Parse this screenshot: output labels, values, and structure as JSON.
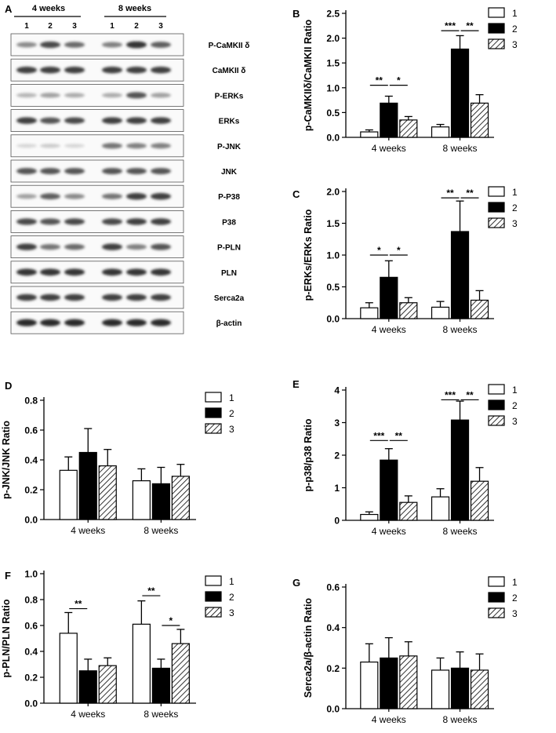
{
  "blot": {
    "panel_letter": "A",
    "group_labels": [
      "4 weeks",
      "8 weeks"
    ],
    "lane_labels": [
      "1",
      "2",
      "3",
      "1",
      "2",
      "3"
    ],
    "rows": [
      {
        "label": "P-CaMKII δ",
        "intensity": [
          0.45,
          0.75,
          0.6,
          0.5,
          0.85,
          0.65
        ]
      },
      {
        "label": "CaMKII δ",
        "intensity": [
          0.8,
          0.8,
          0.8,
          0.8,
          0.8,
          0.8
        ]
      },
      {
        "label": "P-ERKs",
        "intensity": [
          0.25,
          0.35,
          0.3,
          0.3,
          0.7,
          0.35
        ]
      },
      {
        "label": "ERKs",
        "intensity": [
          0.8,
          0.7,
          0.75,
          0.8,
          0.8,
          0.8
        ]
      },
      {
        "label": "P-JNK",
        "intensity": [
          0.1,
          0.15,
          0.1,
          0.55,
          0.5,
          0.5
        ]
      },
      {
        "label": "JNK",
        "intensity": [
          0.7,
          0.7,
          0.7,
          0.7,
          0.7,
          0.7
        ]
      },
      {
        "label": "P-P38",
        "intensity": [
          0.35,
          0.65,
          0.45,
          0.55,
          0.8,
          0.8
        ]
      },
      {
        "label": "P38",
        "intensity": [
          0.75,
          0.7,
          0.75,
          0.75,
          0.8,
          0.8
        ]
      },
      {
        "label": "P-PLN",
        "intensity": [
          0.8,
          0.55,
          0.6,
          0.8,
          0.5,
          0.7
        ]
      },
      {
        "label": "PLN",
        "intensity": [
          0.85,
          0.85,
          0.85,
          0.85,
          0.85,
          0.85
        ]
      },
      {
        "label": "Serca2a",
        "intensity": [
          0.8,
          0.8,
          0.8,
          0.8,
          0.8,
          0.8
        ]
      },
      {
        "label": "β-actin",
        "intensity": [
          0.9,
          0.9,
          0.9,
          0.9,
          0.9,
          0.9
        ]
      }
    ]
  },
  "chart_data": [
    {
      "type": "bar",
      "panel": "B",
      "ylabel": "p-CaMKIIδ/CaMKII Ratio",
      "categories": [
        "4 weeks",
        "8 weeks"
      ],
      "ylim": [
        0,
        2.5
      ],
      "yticks": [
        "0.0",
        "0.5",
        "1.0",
        "1.5",
        "2.0",
        "2.5"
      ],
      "legend_position": "top-right",
      "series": [
        {
          "name": "1",
          "values": [
            0.11,
            0.21
          ],
          "errors": [
            0.04,
            0.05
          ]
        },
        {
          "name": "2",
          "values": [
            0.69,
            1.78
          ],
          "errors": [
            0.14,
            0.27
          ]
        },
        {
          "name": "3",
          "values": [
            0.35,
            0.69
          ],
          "errors": [
            0.07,
            0.17
          ]
        }
      ],
      "significance": [
        {
          "group": 0,
          "from": 0,
          "to": 1,
          "label": "**",
          "y": 1.05
        },
        {
          "group": 0,
          "from": 1,
          "to": 2,
          "label": "*",
          "y": 1.05
        },
        {
          "group": 1,
          "from": 0,
          "to": 1,
          "label": "***",
          "y": 2.15
        },
        {
          "group": 1,
          "from": 1,
          "to": 2,
          "label": "**",
          "y": 2.15
        }
      ]
    },
    {
      "type": "bar",
      "panel": "C",
      "ylabel": "p-ERKs/ERKs Ratio",
      "categories": [
        "4 weeks",
        "8 weeks"
      ],
      "ylim": [
        0,
        2.0
      ],
      "yticks": [
        "0.0",
        "0.5",
        "1.0",
        "1.5",
        "2.0"
      ],
      "legend_position": "top-right",
      "series": [
        {
          "name": "1",
          "values": [
            0.17,
            0.18
          ],
          "errors": [
            0.08,
            0.09
          ]
        },
        {
          "name": "2",
          "values": [
            0.65,
            1.37
          ],
          "errors": [
            0.26,
            0.48
          ]
        },
        {
          "name": "3",
          "values": [
            0.25,
            0.29
          ],
          "errors": [
            0.08,
            0.15
          ]
        }
      ],
      "significance": [
        {
          "group": 0,
          "from": 0,
          "to": 1,
          "label": "*",
          "y": 1.0
        },
        {
          "group": 0,
          "from": 1,
          "to": 2,
          "label": "*",
          "y": 1.0
        },
        {
          "group": 1,
          "from": 0,
          "to": 1,
          "label": "**",
          "y": 1.9
        },
        {
          "group": 1,
          "from": 1,
          "to": 2,
          "label": "**",
          "y": 1.9
        }
      ]
    },
    {
      "type": "bar",
      "panel": "D",
      "ylabel": "p-JNK/JNK Ratio",
      "categories": [
        "4 weeks",
        "8 weeks"
      ],
      "ylim": [
        0,
        0.8
      ],
      "yticks": [
        "0.0",
        "0.2",
        "0.4",
        "0.6",
        "0.8"
      ],
      "legend_position": "top-right",
      "series": [
        {
          "name": "1",
          "values": [
            0.33,
            0.26
          ],
          "errors": [
            0.09,
            0.08
          ]
        },
        {
          "name": "2",
          "values": [
            0.45,
            0.24
          ],
          "errors": [
            0.16,
            0.11
          ]
        },
        {
          "name": "3",
          "values": [
            0.36,
            0.29
          ],
          "errors": [
            0.11,
            0.08
          ]
        }
      ],
      "significance": []
    },
    {
      "type": "bar",
      "panel": "E",
      "ylabel": "p-p38/p38 Ratio",
      "categories": [
        "4 weeks",
        "8 weeks"
      ],
      "ylim": [
        0,
        4
      ],
      "yticks": [
        "0",
        "1",
        "2",
        "3",
        "4"
      ],
      "legend_position": "top-right",
      "series": [
        {
          "name": "1",
          "values": [
            0.18,
            0.72
          ],
          "errors": [
            0.08,
            0.25
          ]
        },
        {
          "name": "2",
          "values": [
            1.85,
            3.08
          ],
          "errors": [
            0.35,
            0.58
          ]
        },
        {
          "name": "3",
          "values": [
            0.55,
            1.2
          ],
          "errors": [
            0.2,
            0.42
          ]
        }
      ],
      "significance": [
        {
          "group": 0,
          "from": 0,
          "to": 1,
          "label": "***",
          "y": 2.45
        },
        {
          "group": 0,
          "from": 1,
          "to": 2,
          "label": "**",
          "y": 2.45
        },
        {
          "group": 1,
          "from": 0,
          "to": 1,
          "label": "***",
          "y": 3.7
        },
        {
          "group": 1,
          "from": 1,
          "to": 2,
          "label": "**",
          "y": 3.7
        }
      ]
    },
    {
      "type": "bar",
      "panel": "F",
      "ylabel": "p-PLN/PLN Ratio",
      "categories": [
        "4 weeks",
        "8 weeks"
      ],
      "ylim": [
        0,
        1.0
      ],
      "yticks": [
        "0.0",
        "0.2",
        "0.4",
        "0.6",
        "0.8",
        "1.0"
      ],
      "legend_position": "top-right",
      "series": [
        {
          "name": "1",
          "values": [
            0.54,
            0.61
          ],
          "errors": [
            0.16,
            0.18
          ]
        },
        {
          "name": "2",
          "values": [
            0.25,
            0.27
          ],
          "errors": [
            0.09,
            0.07
          ]
        },
        {
          "name": "3",
          "values": [
            0.29,
            0.46
          ],
          "errors": [
            0.06,
            0.11
          ]
        }
      ],
      "significance": [
        {
          "group": 0,
          "from": 0,
          "to": 1,
          "label": "**",
          "y": 0.73
        },
        {
          "group": 1,
          "from": 0,
          "to": 1,
          "label": "**",
          "y": 0.83
        },
        {
          "group": 1,
          "from": 1,
          "to": 2,
          "label": "*",
          "y": 0.6
        }
      ]
    },
    {
      "type": "bar",
      "panel": "G",
      "ylabel": "Serca2a/β-actin Ratio",
      "categories": [
        "4 weeks",
        "8 weeks"
      ],
      "ylim": [
        0,
        0.6
      ],
      "yticks": [
        "0.0",
        "0.2",
        "0.4",
        "0.6"
      ],
      "legend_position": "top-right",
      "series": [
        {
          "name": "1",
          "values": [
            0.23,
            0.19
          ],
          "errors": [
            0.09,
            0.06
          ]
        },
        {
          "name": "2",
          "values": [
            0.25,
            0.2
          ],
          "errors": [
            0.1,
            0.08
          ]
        },
        {
          "name": "3",
          "values": [
            0.26,
            0.19
          ],
          "errors": [
            0.07,
            0.08
          ]
        }
      ],
      "significance": []
    }
  ]
}
